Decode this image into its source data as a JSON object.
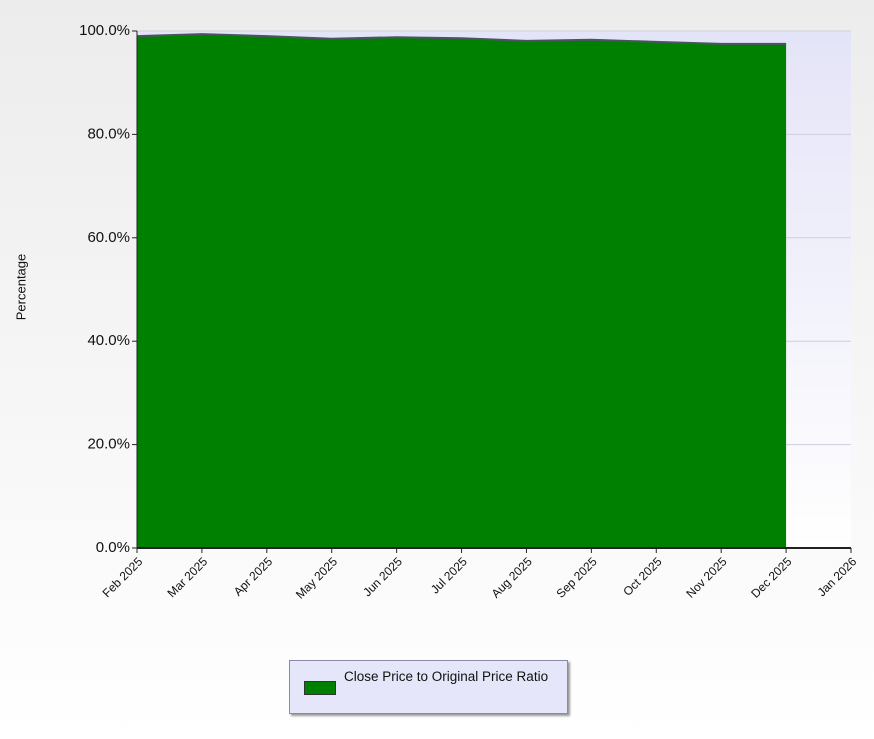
{
  "chart_data": {
    "type": "area",
    "y_label": "Percentage",
    "categories": [
      "Feb 2025",
      "Mar 2025",
      "Apr 2025",
      "May 2025",
      "Jun 2025",
      "Jul 2025",
      "Aug 2025",
      "Sep 2025",
      "Oct 2025",
      "Nov 2025",
      "Dec 2025",
      "Jan 2026"
    ],
    "series": [
      {
        "name": "Close Price to Original Price Ratio",
        "color": "#008000",
        "values": [
          99.0,
          99.4,
          99.0,
          98.5,
          98.8,
          98.6,
          98.1,
          98.3,
          97.9,
          97.5,
          97.5,
          null
        ]
      }
    ],
    "ylim": [
      0,
      100
    ],
    "yticks": [
      {
        "value": 0,
        "label": "0.0%"
      },
      {
        "value": 20,
        "label": "20.0%"
      },
      {
        "value": 40,
        "label": "40.0%"
      },
      {
        "value": 60,
        "label": "60.0%"
      },
      {
        "value": 80,
        "label": "80.0%"
      },
      {
        "value": 100,
        "label": "100.0%"
      }
    ],
    "grid": true
  }
}
